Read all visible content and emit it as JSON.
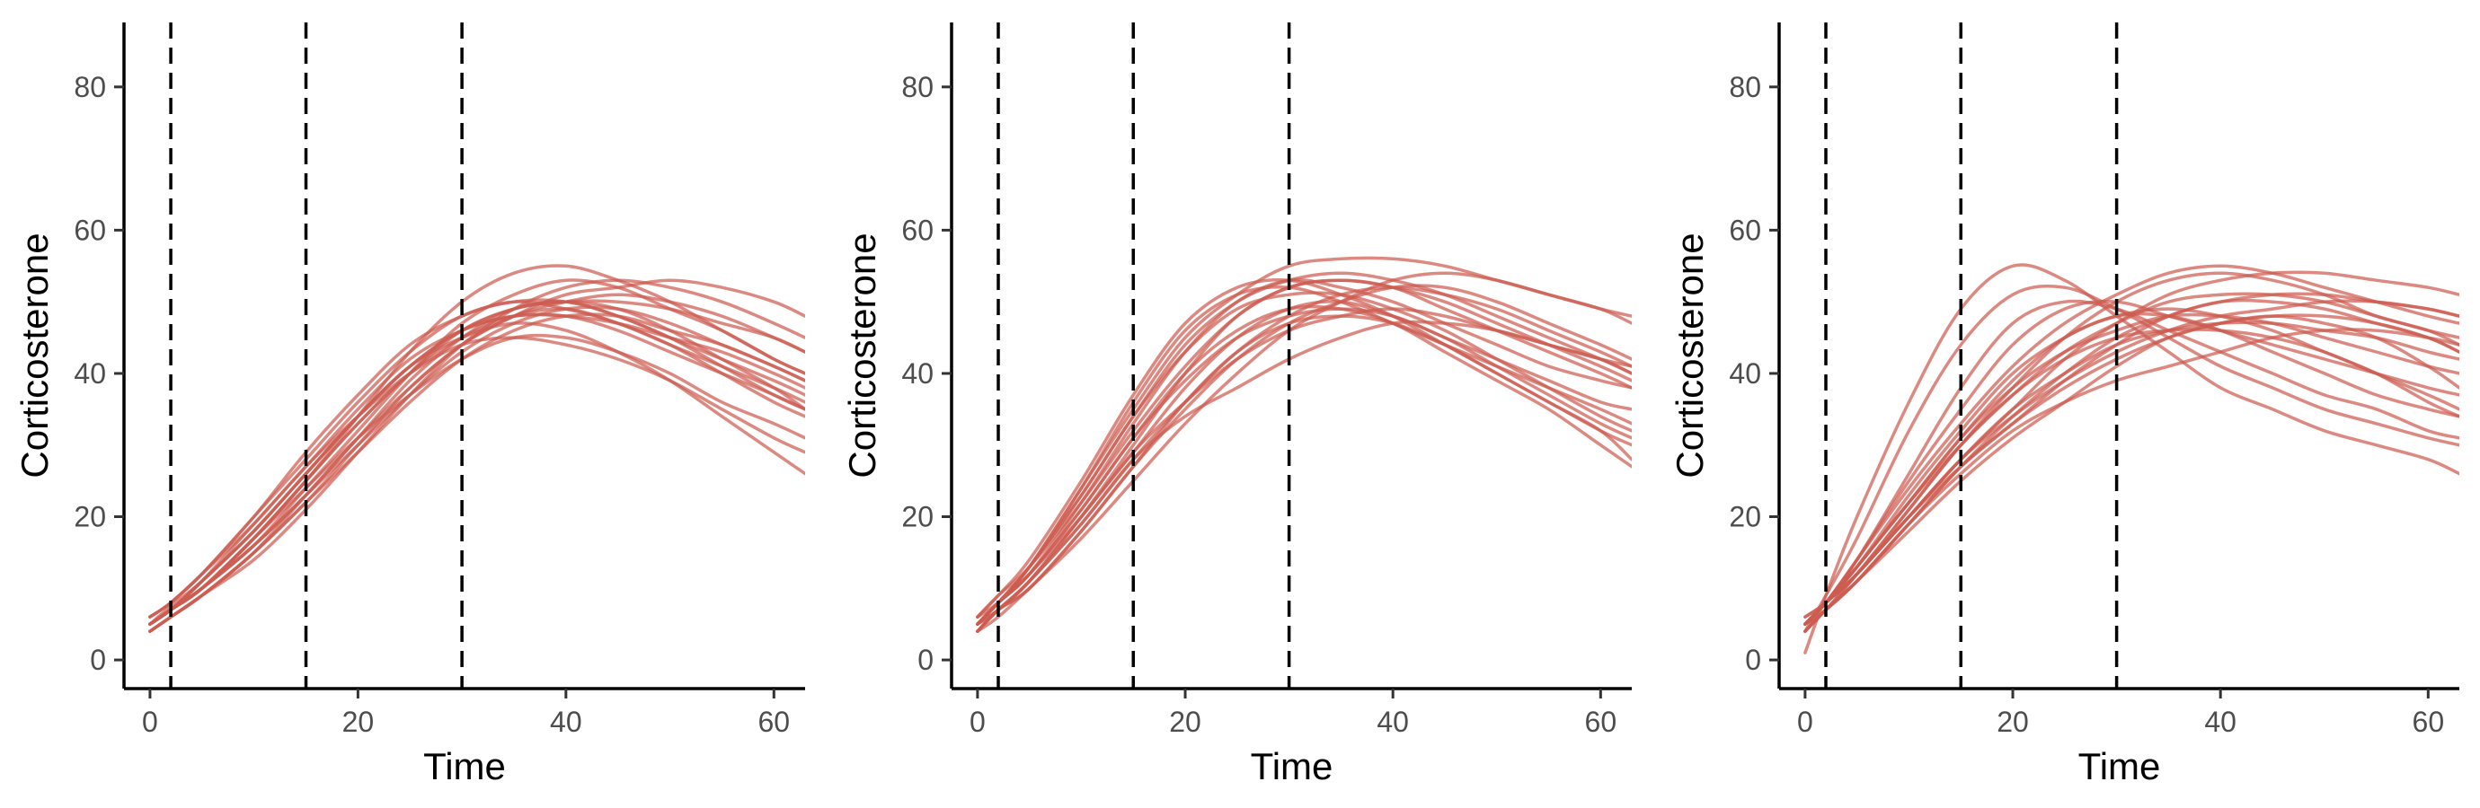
{
  "colors": {
    "line": "#cd5c50",
    "axis": "#000000",
    "ticks": "#4d4d4d"
  },
  "chart_data": [
    {
      "type": "line",
      "xlabel": "Time",
      "ylabel": "Corticosterone",
      "xlim": [
        -2.5,
        63
      ],
      "ylim": [
        -4,
        89
      ],
      "xticks": [
        0,
        20,
        40,
        60
      ],
      "yticks": [
        0,
        20,
        40,
        60,
        80
      ],
      "vlines": [
        2,
        15,
        30
      ],
      "grid": false,
      "x": [
        0,
        2,
        5,
        10,
        15,
        20,
        25,
        30,
        35,
        40,
        45,
        50,
        55,
        60,
        63
      ],
      "series": [
        {
          "values": [
            5,
            7,
            10,
            17,
            25,
            33,
            40,
            45,
            48,
            49,
            47,
            44,
            40,
            36,
            34
          ]
        },
        {
          "values": [
            5,
            7.5,
            11,
            18,
            26,
            34,
            41,
            46,
            48,
            48,
            46,
            43,
            40,
            37,
            35
          ]
        },
        {
          "values": [
            4,
            6,
            9,
            15,
            23,
            31,
            39,
            45,
            49,
            50,
            49,
            46,
            42,
            38,
            35
          ]
        },
        {
          "values": [
            6,
            8,
            12,
            20,
            29,
            37,
            44,
            48,
            50,
            49,
            47,
            44,
            41,
            38,
            36
          ]
        },
        {
          "values": [
            5,
            7,
            10,
            16,
            24,
            32,
            40,
            47,
            51,
            53,
            52,
            49,
            46,
            42,
            40
          ]
        },
        {
          "values": [
            5,
            7,
            10,
            17,
            24,
            31,
            37,
            42,
            45,
            45,
            43,
            40,
            36,
            33,
            31
          ]
        },
        {
          "values": [
            4,
            6,
            9,
            15,
            22,
            29,
            36,
            42,
            46,
            48,
            48,
            46,
            44,
            41,
            39
          ]
        },
        {
          "values": [
            5,
            7,
            11,
            19,
            27,
            35,
            42,
            46,
            48,
            48,
            47,
            45,
            43,
            40,
            38
          ]
        },
        {
          "values": [
            5,
            7,
            10,
            16,
            23,
            30,
            37,
            43,
            47,
            49,
            49,
            47,
            44,
            41,
            39
          ]
        },
        {
          "values": [
            6,
            8,
            12,
            20,
            28,
            36,
            43,
            48,
            50,
            50,
            48,
            45,
            42,
            39,
            37
          ]
        },
        {
          "values": [
            5,
            7,
            10,
            17,
            25,
            34,
            43,
            50,
            54,
            55,
            53,
            50,
            46,
            42,
            40
          ]
        },
        {
          "values": [
            5,
            7,
            11,
            18,
            26,
            34,
            41,
            46,
            49,
            50,
            50,
            49,
            47,
            45,
            43
          ]
        },
        {
          "values": [
            4,
            6,
            9,
            15,
            22,
            30,
            38,
            44,
            48,
            51,
            52,
            53,
            52,
            50,
            48
          ]
        },
        {
          "values": [
            5,
            7,
            10,
            16,
            23,
            31,
            38,
            44,
            48,
            50,
            51,
            50,
            48,
            45,
            43
          ]
        },
        {
          "values": [
            6,
            8,
            12,
            19,
            27,
            34,
            40,
            44,
            45,
            44,
            42,
            39,
            35,
            31,
            29
          ]
        },
        {
          "values": [
            5,
            7,
            11,
            18,
            26,
            34,
            41,
            45,
            47,
            46,
            43,
            39,
            34,
            29,
            26
          ]
        },
        {
          "values": [
            4,
            6,
            9,
            14,
            21,
            29,
            37,
            44,
            49,
            52,
            53,
            52,
            50,
            47,
            45
          ]
        },
        {
          "values": [
            5,
            7,
            10,
            17,
            25,
            33,
            40,
            46,
            49,
            50,
            48,
            45,
            41,
            37,
            35
          ]
        }
      ]
    },
    {
      "type": "line",
      "xlabel": "Time",
      "ylabel": "Corticosterone",
      "xlim": [
        -2.5,
        63
      ],
      "ylim": [
        -4,
        89
      ],
      "xticks": [
        0,
        20,
        40,
        60
      ],
      "yticks": [
        0,
        20,
        40,
        60,
        80
      ],
      "vlines": [
        2,
        15,
        30
      ],
      "grid": false,
      "x": [
        0,
        2,
        5,
        10,
        15,
        20,
        25,
        30,
        35,
        40,
        45,
        50,
        55,
        60,
        63
      ],
      "series": [
        {
          "values": [
            5,
            8,
            13,
            24,
            36,
            46,
            51,
            52,
            50,
            47,
            44,
            41,
            38,
            35,
            33
          ]
        },
        {
          "values": [
            5,
            8,
            12,
            22,
            33,
            43,
            50,
            53,
            52,
            50,
            47,
            44,
            41,
            39,
            38
          ]
        },
        {
          "values": [
            4,
            7,
            11,
            20,
            30,
            40,
            48,
            52,
            53,
            52,
            50,
            47,
            44,
            41,
            39
          ]
        },
        {
          "values": [
            6,
            9,
            14,
            25,
            37,
            47,
            52,
            53,
            51,
            48,
            44,
            40,
            36,
            32,
            30
          ]
        },
        {
          "values": [
            5,
            7,
            11,
            19,
            28,
            36,
            43,
            48,
            51,
            52,
            51,
            49,
            46,
            43,
            41
          ]
        },
        {
          "values": [
            4,
            7,
            10,
            18,
            27,
            35,
            42,
            47,
            50,
            52,
            52,
            50,
            47,
            44,
            42
          ]
        },
        {
          "values": [
            5,
            8,
            12,
            21,
            31,
            40,
            46,
            49,
            49,
            47,
            43,
            39,
            35,
            30,
            27
          ]
        },
        {
          "values": [
            5,
            8,
            13,
            23,
            34,
            44,
            50,
            53,
            54,
            53,
            51,
            48,
            45,
            42,
            40
          ]
        },
        {
          "values": [
            4,
            6,
            10,
            17,
            25,
            33,
            40,
            46,
            50,
            53,
            54,
            53,
            51,
            49,
            47
          ]
        },
        {
          "values": [
            6,
            9,
            13,
            22,
            32,
            41,
            48,
            52,
            53,
            52,
            49,
            46,
            43,
            40,
            38
          ]
        },
        {
          "values": [
            5,
            7,
            11,
            20,
            29,
            38,
            45,
            49,
            50,
            48,
            45,
            41,
            37,
            33,
            31
          ]
        },
        {
          "values": [
            5,
            8,
            13,
            24,
            35,
            45,
            51,
            55,
            56,
            56,
            55,
            53,
            51,
            49,
            48
          ]
        },
        {
          "values": [
            4,
            7,
            11,
            19,
            28,
            34,
            38,
            42,
            45,
            47,
            47,
            46,
            44,
            42,
            40
          ]
        },
        {
          "values": [
            5,
            8,
            12,
            21,
            31,
            39,
            45,
            48,
            49,
            48,
            45,
            42,
            39,
            36,
            35
          ]
        },
        {
          "values": [
            6,
            8,
            12,
            20,
            29,
            36,
            42,
            46,
            48,
            49,
            48,
            46,
            44,
            42,
            41
          ]
        },
        {
          "values": [
            5,
            8,
            13,
            23,
            34,
            43,
            49,
            51,
            51,
            49,
            46,
            42,
            38,
            34,
            32
          ]
        },
        {
          "values": [
            4,
            7,
            10,
            18,
            27,
            36,
            43,
            47,
            48,
            47,
            44,
            40,
            36,
            32,
            28
          ]
        }
      ]
    },
    {
      "type": "line",
      "xlabel": "Time",
      "ylabel": "Corticosterone",
      "xlim": [
        -2.5,
        63
      ],
      "ylim": [
        -4,
        89
      ],
      "xticks": [
        0,
        20,
        40,
        60
      ],
      "yticks": [
        0,
        20,
        40,
        60,
        80
      ],
      "vlines": [
        2,
        15,
        30
      ],
      "grid": false,
      "x": [
        0,
        2,
        5,
        10,
        15,
        20,
        25,
        30,
        35,
        40,
        45,
        50,
        55,
        60,
        63
      ],
      "series": [
        {
          "values": [
            1,
            9,
            20,
            36,
            49,
            55,
            53,
            48,
            43,
            38,
            35,
            32,
            30,
            28,
            26
          ]
        },
        {
          "values": [
            4,
            9,
            17,
            32,
            44,
            51,
            52,
            49,
            45,
            41,
            38,
            35,
            33,
            31,
            30
          ]
        },
        {
          "values": [
            5,
            8,
            14,
            24,
            33,
            41,
            47,
            51,
            54,
            55,
            54,
            52,
            50,
            48,
            47
          ]
        },
        {
          "values": [
            5,
            8,
            14,
            25,
            35,
            44,
            49,
            50,
            48,
            46,
            44,
            42,
            40,
            38,
            37
          ]
        },
        {
          "values": [
            4,
            7,
            12,
            21,
            30,
            38,
            45,
            50,
            53,
            54,
            53,
            51,
            48,
            46,
            44
          ]
        },
        {
          "values": [
            5,
            8,
            13,
            22,
            30,
            37,
            43,
            47,
            50,
            51,
            51,
            50,
            48,
            46,
            45
          ]
        },
        {
          "values": [
            6,
            8,
            12,
            20,
            27,
            33,
            39,
            44,
            48,
            50,
            51,
            51,
            50,
            49,
            48
          ]
        },
        {
          "values": [
            5,
            7,
            12,
            20,
            28,
            35,
            42,
            47,
            51,
            53,
            54,
            54,
            53,
            52,
            51
          ]
        },
        {
          "values": [
            5,
            8,
            13,
            22,
            31,
            38,
            43,
            46,
            48,
            48,
            47,
            45,
            43,
            41,
            40
          ]
        },
        {
          "values": [
            4,
            7,
            11,
            19,
            27,
            34,
            40,
            45,
            48,
            50,
            50,
            49,
            47,
            45,
            43
          ]
        },
        {
          "values": [
            5,
            8,
            13,
            23,
            32,
            40,
            45,
            48,
            48,
            46,
            43,
            40,
            37,
            35,
            34
          ]
        },
        {
          "values": [
            5,
            8,
            14,
            26,
            38,
            47,
            50,
            49,
            46,
            43,
            40,
            37,
            35,
            32,
            31
          ]
        },
        {
          "values": [
            4,
            7,
            11,
            18,
            25,
            31,
            36,
            41,
            45,
            47,
            48,
            48,
            47,
            45,
            43
          ]
        },
        {
          "values": [
            5,
            7,
            11,
            19,
            26,
            32,
            36,
            39,
            41,
            43,
            45,
            46,
            46,
            45,
            44
          ]
        },
        {
          "values": [
            6,
            8,
            12,
            20,
            28,
            35,
            40,
            44,
            46,
            47,
            47,
            46,
            45,
            43,
            42
          ]
        },
        {
          "values": [
            5,
            8,
            12,
            20,
            28,
            34,
            39,
            43,
            46,
            48,
            49,
            50,
            50,
            49,
            48
          ]
        },
        {
          "values": [
            4,
            7,
            11,
            19,
            27,
            33,
            38,
            42,
            45,
            47,
            48,
            47,
            45,
            41,
            38
          ]
        },
        {
          "values": [
            5,
            8,
            12,
            21,
            30,
            37,
            42,
            45,
            46,
            46,
            45,
            43,
            40,
            37,
            35
          ]
        },
        {
          "values": [
            5,
            8,
            13,
            22,
            31,
            39,
            45,
            48,
            49,
            48,
            46,
            43,
            40,
            36,
            34
          ]
        }
      ]
    }
  ]
}
